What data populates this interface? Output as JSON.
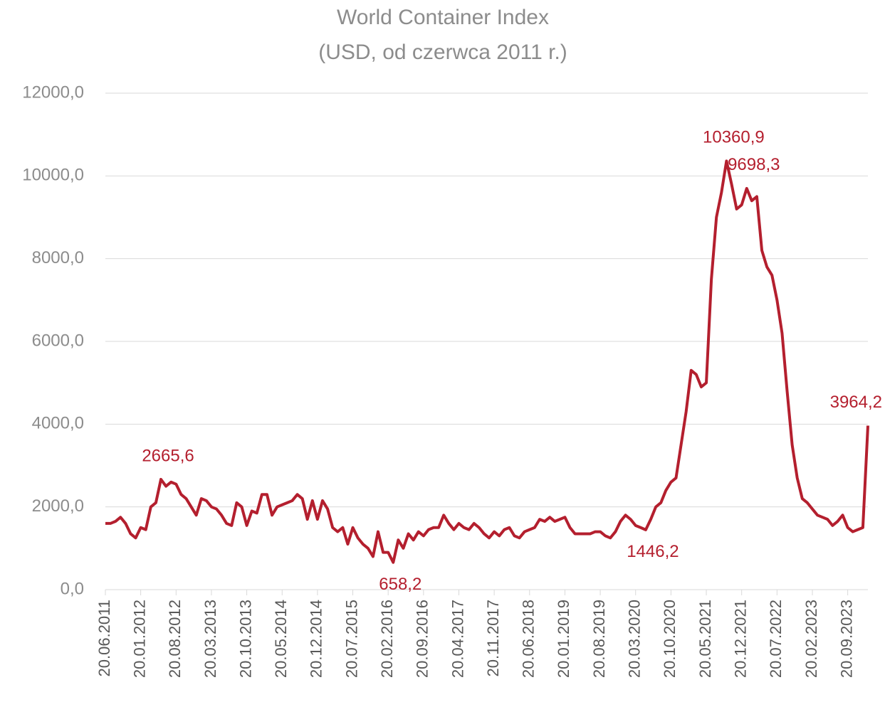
{
  "chart_data": {
    "type": "line",
    "title": "World Container Index",
    "subtitle": "(USD, od czerwca 2011 r.)",
    "categories": [
      "20.06.2011",
      null,
      null,
      null,
      null,
      null,
      null,
      "20.01.2012",
      null,
      null,
      null,
      null,
      null,
      null,
      "20.08.2012",
      null,
      null,
      null,
      null,
      null,
      null,
      "20.03.2013",
      null,
      null,
      null,
      null,
      null,
      null,
      "20.10.2013",
      null,
      null,
      null,
      null,
      null,
      null,
      "20.05.2014",
      null,
      null,
      null,
      null,
      null,
      null,
      "20.12.2014",
      null,
      null,
      null,
      null,
      null,
      null,
      "20.07.2015",
      null,
      null,
      null,
      null,
      null,
      null,
      "20.02.2016",
      null,
      null,
      null,
      null,
      null,
      null,
      "20.09.2016",
      null,
      null,
      null,
      null,
      null,
      null,
      "20.04.2017",
      null,
      null,
      null,
      null,
      null,
      null,
      "20.11.2017",
      null,
      null,
      null,
      null,
      null,
      null,
      "20.06.2018",
      null,
      null,
      null,
      null,
      null,
      null,
      "20.01.2019",
      null,
      null,
      null,
      null,
      null,
      null,
      "20.08.2019",
      null,
      null,
      null,
      null,
      null,
      null,
      "20.03.2020",
      null,
      null,
      null,
      null,
      null,
      null,
      "20.10.2020",
      null,
      null,
      null,
      null,
      null,
      null,
      "20.05.2021",
      null,
      null,
      null,
      null,
      null,
      null,
      "20.12.2021",
      null,
      null,
      null,
      null,
      null,
      null,
      "20.07.2022",
      null,
      null,
      null,
      null,
      null,
      null,
      "20.02.2023",
      null,
      null,
      null,
      null,
      null,
      null,
      "20.09.2023",
      null,
      null,
      null,
      null
    ],
    "series": [
      {
        "color": "#b41f2e",
        "values": [
          1600,
          1600,
          1650,
          1750,
          1600,
          1350,
          1250,
          1500,
          1450,
          2000,
          2100,
          2665.6,
          2500,
          2600,
          2550,
          2300,
          2200,
          2000,
          1800,
          2200,
          2150,
          2000,
          1950,
          1800,
          1600,
          1550,
          2100,
          2000,
          1550,
          1900,
          1850,
          2300,
          2300,
          1800,
          2000,
          2050,
          2100,
          2150,
          2300,
          2200,
          1700,
          2150,
          1700,
          2150,
          1950,
          1500,
          1400,
          1500,
          1100,
          1500,
          1250,
          1100,
          1000,
          800,
          1400,
          900,
          900,
          658.2,
          1200,
          1000,
          1350,
          1200,
          1400,
          1300,
          1450,
          1500,
          1500,
          1800,
          1600,
          1450,
          1600,
          1500,
          1450,
          1600,
          1500,
          1350,
          1250,
          1400,
          1300,
          1450,
          1500,
          1300,
          1250,
          1400,
          1450,
          1500,
          1700,
          1650,
          1750,
          1650,
          1700,
          1750,
          1500,
          1350,
          1350,
          1350,
          1350,
          1400,
          1400,
          1300,
          1250,
          1400,
          1650,
          1800,
          1700,
          1550,
          1500,
          1446.2,
          1700,
          2000,
          2100,
          2400,
          2600,
          2700,
          3500,
          4300,
          5300,
          5200,
          4900,
          5000,
          7500,
          9000,
          9600,
          10360.9,
          9800,
          9200,
          9300,
          9698.3,
          9400,
          9500,
          8200,
          7800,
          7600,
          7000,
          6200,
          4800,
          3500,
          2700,
          2200,
          2100,
          1950,
          1800,
          1750,
          1700,
          1550,
          1650,
          1800,
          1500,
          1400,
          1450,
          1500,
          3964.2
        ],
        "value_labels": [
          null,
          null,
          null,
          null,
          null,
          null,
          null,
          null,
          null,
          null,
          null,
          "2665,6",
          null,
          null,
          null,
          null,
          null,
          null,
          null,
          null,
          null,
          null,
          null,
          null,
          null,
          null,
          null,
          null,
          null,
          null,
          null,
          null,
          null,
          null,
          null,
          null,
          null,
          null,
          null,
          null,
          null,
          null,
          null,
          null,
          null,
          null,
          null,
          null,
          null,
          null,
          null,
          null,
          null,
          null,
          null,
          null,
          null,
          "658,2",
          null,
          null,
          null,
          null,
          null,
          null,
          null,
          null,
          null,
          null,
          null,
          null,
          null,
          null,
          null,
          null,
          null,
          null,
          null,
          null,
          null,
          null,
          null,
          null,
          null,
          null,
          null,
          null,
          null,
          null,
          null,
          null,
          null,
          null,
          null,
          null,
          null,
          null,
          null,
          null,
          null,
          null,
          null,
          null,
          null,
          null,
          null,
          null,
          null,
          "1446,2",
          null,
          null,
          null,
          null,
          null,
          null,
          null,
          null,
          null,
          null,
          null,
          null,
          null,
          null,
          null,
          "10360,9",
          null,
          null,
          null,
          "9698,3",
          null,
          null,
          null,
          null,
          null,
          null,
          null,
          null,
          null,
          null,
          null,
          null,
          null,
          null,
          null,
          null,
          null,
          null,
          null,
          null,
          null,
          null,
          null,
          "3964,2"
        ]
      }
    ],
    "ylim": [
      0,
      12000
    ],
    "yticks": [
      {
        "value": 0,
        "label": "0,0"
      },
      {
        "value": 2000,
        "label": "2000,0"
      },
      {
        "value": 4000,
        "label": "4000,0"
      },
      {
        "value": 6000,
        "label": "6000,0"
      },
      {
        "value": 8000,
        "label": "8000,0"
      },
      {
        "value": 10000,
        "label": "10000,0"
      },
      {
        "value": 12000,
        "label": "12000,0"
      }
    ],
    "grid": true
  }
}
